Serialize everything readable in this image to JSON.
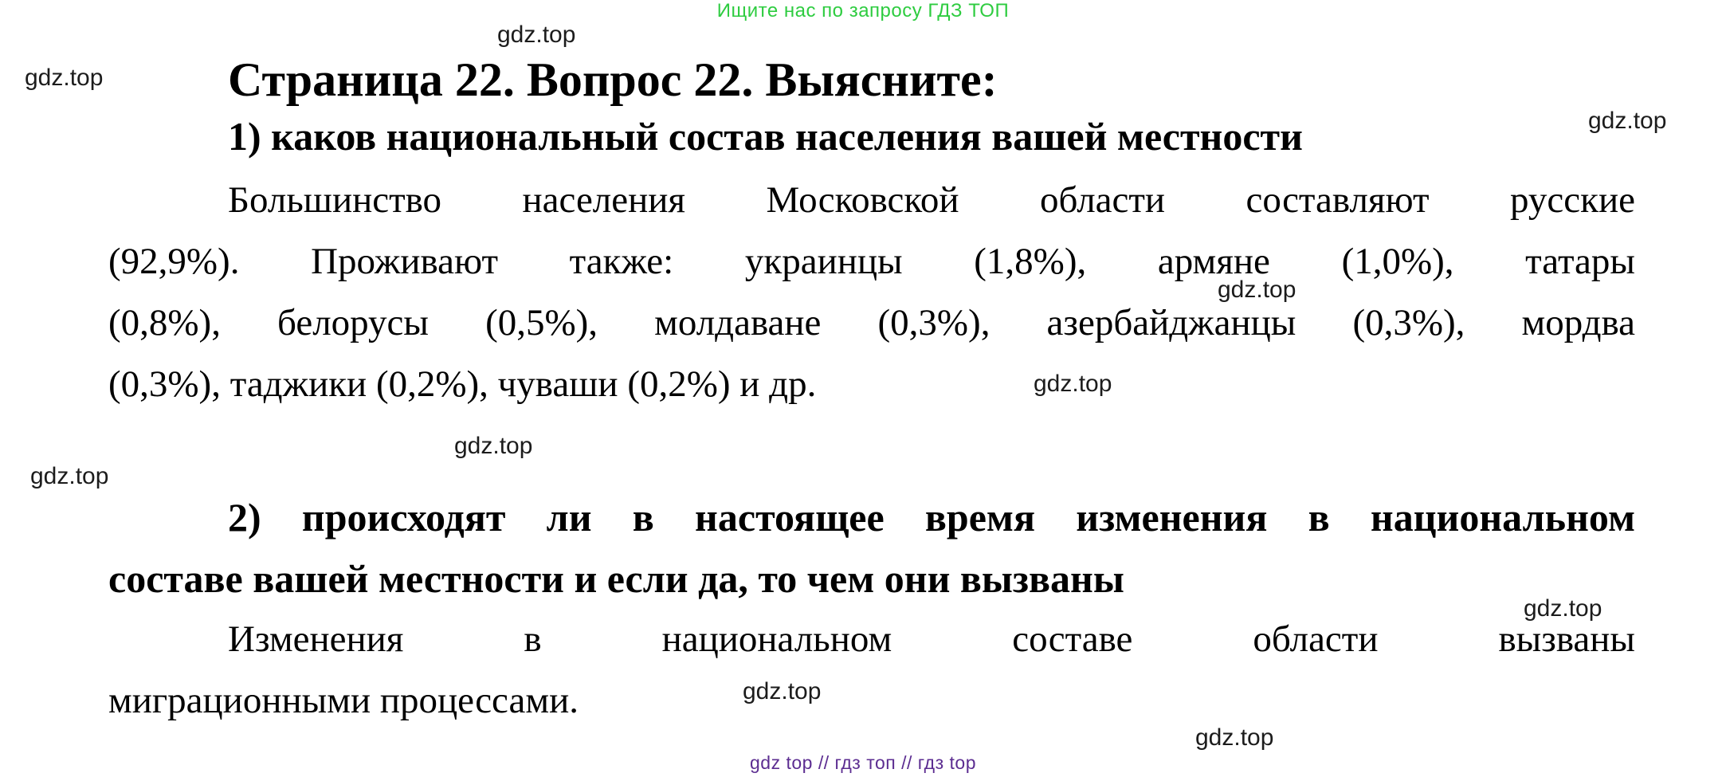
{
  "banner": {
    "text": "Ищите нас по запросу ГДЗ ТОП",
    "color": "#2ecc40"
  },
  "watermark": {
    "label": "gdz.top"
  },
  "footer": {
    "text": "gdz top  //  гдз топ  //  гдз top",
    "color": "#5c2d91"
  },
  "document": {
    "title": "Страница 22. Вопрос 22. Выясните:",
    "question1_heading": "1) каков национальный состав населения вашей местности",
    "answer1_lines": [
      "Большинство населения Московской области составляют русские",
      "(92,9%). Проживают также: украинцы (1,8%), армяне (1,0%), татары",
      "(0,8%), белорусы (0,5%), молдаване (0,3%), азербайджанцы (0,3%), мордва",
      "(0,3%), таджики (0,2%), чуваши (0,2%) и др."
    ],
    "question2_heading_lines": [
      "2) происходят ли в настоящее время изменения в национальном",
      "составе вашей местности и если да, то чем они вызваны"
    ],
    "answer2_lines": [
      "Изменения в национальном составе области вызваны",
      "миграционными процессами."
    ]
  }
}
